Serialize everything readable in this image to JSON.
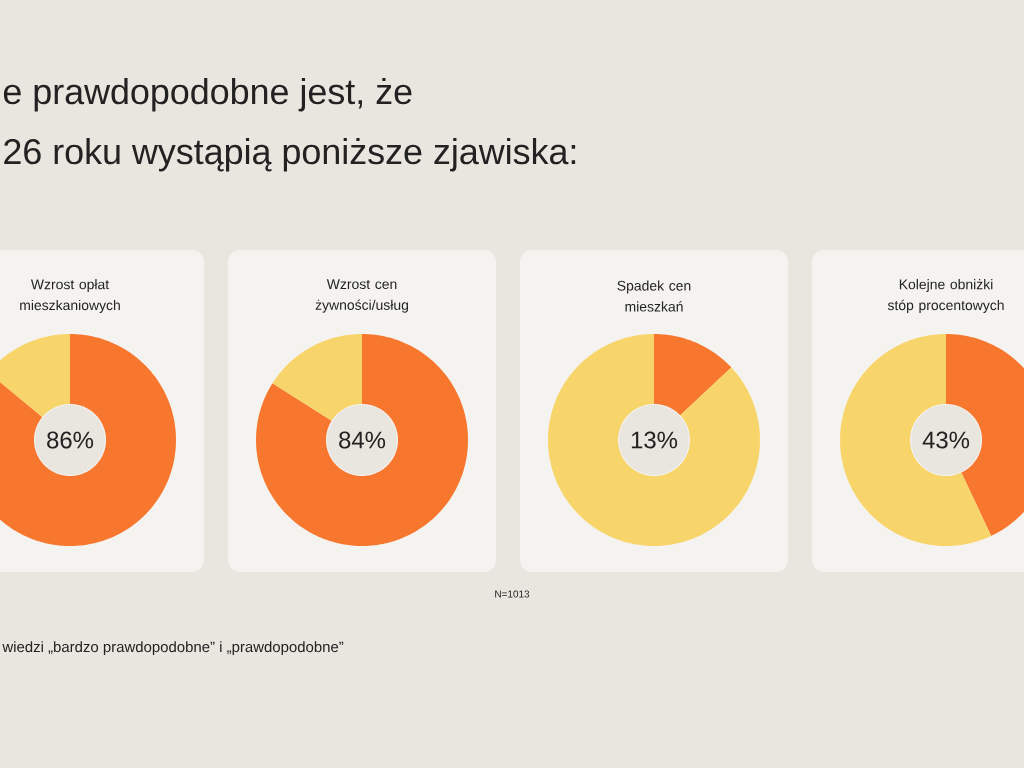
{
  "chart_data": [
    {
      "type": "other",
      "title": "e prawdopodobne jest, że",
      "subtitle": "26 roku wystąpią poniższe zjawiska:",
      "annotations": [
        "N=1013",
        "wiedzi „bardzo prawdopodobne” i „prawdopodobne”"
      ]
    },
    {
      "type": "donut",
      "title": "Wzrost opłat mieszkaniowych",
      "categories": [
        null,
        null
      ],
      "values": [
        86,
        14
      ],
      "colors": [
        "#f7772e",
        "#f8d56b"
      ],
      "annotations": [
        "86%"
      ]
    },
    {
      "type": "donut",
      "title": "Wzrost cen żywności/usług",
      "categories": [
        null,
        null
      ],
      "values": [
        84,
        16
      ],
      "colors": [
        "#f7772e",
        "#f8d56b"
      ],
      "annotations": [
        "84%"
      ]
    },
    {
      "type": "donut",
      "title": "Spadek cen mieszkań",
      "categories": [
        null,
        null
      ],
      "values": [
        13,
        87
      ],
      "colors": [
        "#f7772e",
        "#f8d56b"
      ],
      "annotations": [
        "13%"
      ]
    },
    {
      "type": "donut",
      "title": "Kolejne obniżki stóp procentowych",
      "categories": [
        null,
        null
      ],
      "values": [
        43,
        57
      ],
      "colors": [
        "#f7772e",
        "#f8d56b"
      ],
      "annotations": [
        "43%"
      ]
    }
  ]
}
